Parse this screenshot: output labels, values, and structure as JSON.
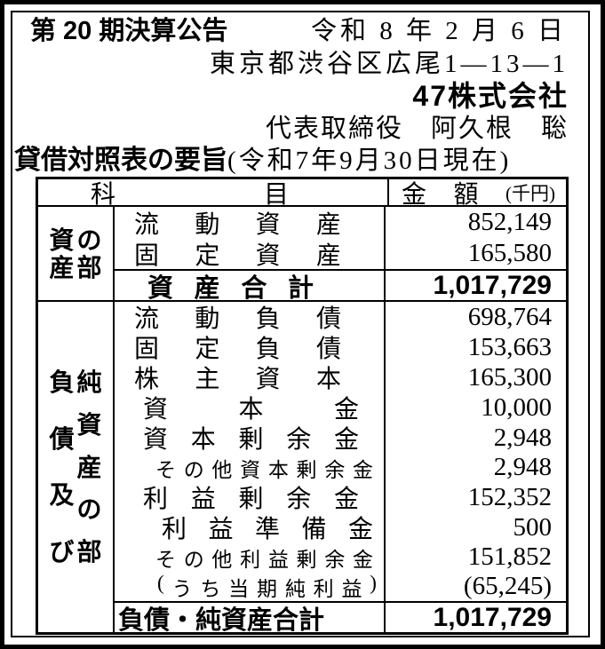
{
  "page": {
    "announcement_title": "第 20 期決算公告",
    "announcement_date": "令和 8 年 2 月 6 日",
    "address": "東京都渋谷区広尾1—13—1",
    "company_name": "47株式会社",
    "representative": "代表取締役　阿久根　聡",
    "report_title": "貸借対照表の要旨",
    "report_asof": "(令和7年9月30日現在)"
  },
  "table": {
    "header_item": "科目",
    "header_amount": "金額",
    "header_amount_unit": "(千円)",
    "sections": [
      {
        "group_label_columns": [
          "資産",
          "の部"
        ],
        "rows": [
          {
            "label": "流動資産",
            "indent": "l1",
            "amount": "852,149"
          },
          {
            "label": "固定資産",
            "indent": "l1",
            "amount": "165,580"
          }
        ],
        "total": {
          "label": "資産合計",
          "amount": "1,017,729",
          "justify": true
        }
      },
      {
        "group_label_columns": [
          "負債及び",
          "純資産の部"
        ],
        "rows": [
          {
            "label": "流動負債",
            "indent": "l1",
            "amount": "698,764"
          },
          {
            "label": "固定負債",
            "indent": "l1",
            "amount": "153,663"
          },
          {
            "label": "株主資本",
            "indent": "l1",
            "amount": "165,300"
          },
          {
            "label": "資本金",
            "indent": "l2",
            "amount": "10,000"
          },
          {
            "label": "資本剰余金",
            "indent": "l2",
            "amount": "2,948"
          },
          {
            "label": "その他資本剰余金",
            "indent": "small",
            "amount": "2,948"
          },
          {
            "label": "利益剰余金",
            "indent": "l2",
            "amount": "152,352"
          },
          {
            "label": "利益準備金",
            "indent": "l3",
            "amount": "500"
          },
          {
            "label": "その他利益剰余金",
            "indent": "small",
            "amount": "151,852"
          },
          {
            "label": "(うち当期純利益)",
            "indent": "smallparen",
            "amount": "(65,245)"
          }
        ],
        "total": {
          "label": "負債・純資産合計",
          "amount": "1,017,729",
          "justify": false
        }
      }
    ]
  }
}
